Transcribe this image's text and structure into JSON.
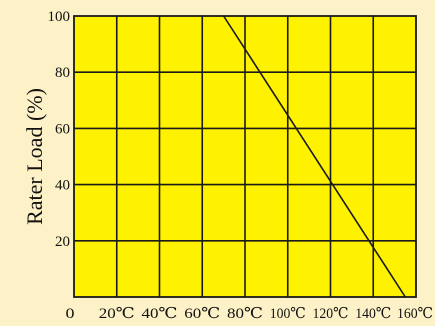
{
  "chart_data": {
    "type": "line",
    "title": "",
    "xlabel": "",
    "ylabel": "Rater Load (%)",
    "x_ticks": [
      "0",
      "20℃",
      "40℃",
      "60℃",
      "80℃",
      "100℃",
      "120℃",
      "140℃",
      "160℃"
    ],
    "y_ticks": [
      "20",
      "40",
      "60",
      "80",
      "100"
    ],
    "xlim": [
      0,
      160
    ],
    "ylim": [
      0,
      100
    ],
    "grid": true,
    "series": [
      {
        "x": [
          70,
          155
        ],
        "y": [
          100,
          0
        ]
      }
    ],
    "colors": {
      "background": "#fdf2c7",
      "plot_fill": "#fff200",
      "grid": "#1a1a1a",
      "line": "#1a1a1a"
    }
  }
}
